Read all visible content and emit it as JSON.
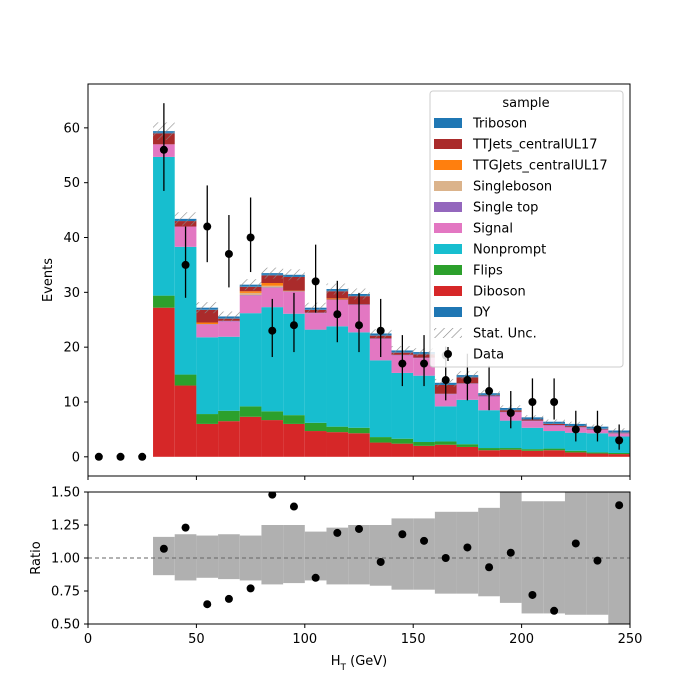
{
  "chart_data": [
    {
      "type": "stacked-histogram",
      "ylabel": "Events",
      "ylim": [
        -3.5,
        68
      ],
      "yticks": [
        0,
        10,
        20,
        30,
        40,
        50,
        60
      ],
      "xlim": [
        0,
        250
      ],
      "bin_edges": [
        0,
        10,
        20,
        30,
        40,
        50,
        60,
        70,
        80,
        90,
        100,
        110,
        120,
        130,
        140,
        150,
        160,
        170,
        180,
        190,
        200,
        210,
        220,
        230,
        240,
        250
      ],
      "legend": {
        "title": "sample",
        "placement": "upper right",
        "entries": [
          "Triboson",
          "TTJets_centralUL17",
          "TTGJets_centralUL17",
          "Singleboson",
          "Single top",
          "Signal",
          "Nonprompt",
          "Flips",
          "Diboson",
          "DY",
          "Stat. Unc.",
          "Data"
        ]
      },
      "series": [
        {
          "name": "Diboson",
          "color": "#d62728",
          "values": [
            0,
            0,
            0,
            27.2,
            13.0,
            6.0,
            6.5,
            7.3,
            6.7,
            6.0,
            4.7,
            4.5,
            4.3,
            2.6,
            2.4,
            2.0,
            2.2,
            1.8,
            1.2,
            1.3,
            1.1,
            1.2,
            0.8,
            0.6,
            0.5
          ]
        },
        {
          "name": "Flips",
          "color": "#2ca02c",
          "values": [
            0,
            0,
            0,
            2.2,
            2.0,
            1.8,
            1.9,
            1.9,
            1.6,
            1.6,
            1.5,
            1.0,
            1.0,
            1.0,
            0.9,
            0.7,
            0.6,
            0.5,
            0.4,
            0.3,
            0.3,
            0.3,
            0.3,
            0.2,
            0.2
          ]
        },
        {
          "name": "Nonprompt",
          "color": "#17becf",
          "values": [
            0,
            0,
            0,
            25.3,
            23.3,
            14.0,
            13.5,
            17.0,
            19.0,
            18.5,
            17.0,
            18.3,
            17.4,
            14.0,
            12.0,
            12.1,
            6.4,
            8.1,
            6.9,
            5.0,
            3.9,
            3.2,
            3.3,
            3.5,
            3.0
          ]
        },
        {
          "name": "Signal",
          "color": "#e377c2",
          "values": [
            0,
            0,
            0,
            2.3,
            3.7,
            2.3,
            2.8,
            3.2,
            3.5,
            4.0,
            3.0,
            4.8,
            5.0,
            3.9,
            3.2,
            3.2,
            2.2,
            2.9,
            2.5,
            1.5,
            1.2,
            1.0,
            0.9,
            0.6,
            0.5
          ]
        },
        {
          "name": "Single top",
          "color": "#9467bd",
          "values": [
            0,
            0,
            0,
            0,
            0,
            0.1,
            0.1,
            0.1,
            0.1,
            0.1,
            0.1,
            0.1,
            0.1,
            0.1,
            0.1,
            0.1,
            0.1,
            0.1,
            0.1,
            0.1,
            0.1,
            0.1,
            0.1,
            0.1,
            0.1
          ]
        },
        {
          "name": "Singleboson",
          "color": "#dbb38b",
          "values": [
            0,
            0,
            0,
            0,
            0,
            0,
            0,
            0.4,
            0.3,
            0,
            0,
            0,
            0,
            0,
            0,
            0,
            0,
            0,
            0,
            0,
            0,
            0,
            0,
            0,
            0
          ]
        },
        {
          "name": "TTGJets_centralUL17",
          "color": "#ff7f0e",
          "values": [
            0,
            0,
            0,
            0,
            0,
            0.3,
            0,
            0.3,
            0.5,
            0.1,
            0,
            0.2,
            0,
            0,
            0,
            0,
            0,
            0,
            0,
            0,
            0,
            0,
            0,
            0,
            0
          ]
        },
        {
          "name": "TTJets_centralUL17",
          "color": "#aa2b2b",
          "values": [
            0,
            0,
            0,
            2.0,
            1.0,
            2.3,
            0.4,
            0.8,
            1.4,
            2.5,
            0.5,
            1.3,
            1.5,
            0.5,
            0.4,
            0.6,
            1.6,
            1.1,
            0.1,
            0.3,
            0.2,
            0.2,
            0.2,
            0.1,
            0.1
          ]
        },
        {
          "name": "Triboson",
          "color": "#1f77b4",
          "values": [
            0,
            0,
            0,
            0.1,
            0.1,
            0.1,
            0.1,
            0.1,
            0.1,
            0.1,
            0.1,
            0.1,
            0.1,
            0.1,
            0.1,
            0.1,
            0.1,
            0.1,
            0.1,
            0.1,
            0.1,
            0.1,
            0.1,
            0.1,
            0.1
          ]
        },
        {
          "name": "DY",
          "color": "#1f77b4",
          "values": [
            0,
            0,
            0,
            0.3,
            0.3,
            0.3,
            0.3,
            0.3,
            0.3,
            0.3,
            0.3,
            0.3,
            0.3,
            0.3,
            0.3,
            0.3,
            0.3,
            0.3,
            0.3,
            0.3,
            0.3,
            0.3,
            0.3,
            0.3,
            0.3
          ]
        }
      ],
      "stat_unc": [
        0,
        0,
        0,
        1.6,
        1.2,
        1.0,
        0.9,
        1.0,
        1.0,
        1.0,
        0.9,
        1.0,
        1.0,
        0.8,
        0.8,
        0.7,
        0.7,
        0.7,
        0.6,
        0.5,
        0.4,
        0.4,
        0.4,
        0.4,
        0.4
      ],
      "data_points": {
        "name": "Data",
        "x": [
          5,
          15,
          25,
          35,
          45,
          55,
          65,
          75,
          85,
          95,
          105,
          115,
          125,
          135,
          145,
          155,
          165,
          175,
          185,
          195,
          205,
          215,
          225,
          235,
          245
        ],
        "y": [
          0,
          0,
          0,
          56,
          35,
          42,
          37,
          40,
          23,
          24,
          32,
          26,
          24,
          23,
          17,
          17,
          14,
          14,
          12,
          8,
          10,
          10,
          5,
          5,
          3
        ],
        "err_low": [
          0,
          0,
          0,
          7.5,
          6.0,
          6.5,
          6.1,
          6.3,
          4.8,
          4.9,
          5.7,
          5.1,
          4.9,
          4.8,
          4.1,
          4.1,
          3.7,
          3.7,
          3.5,
          2.8,
          3.2,
          3.2,
          2.2,
          2.2,
          1.7
        ],
        "err_high": [
          0,
          0,
          0,
          8.5,
          7.0,
          7.5,
          7.1,
          7.3,
          5.8,
          5.9,
          6.7,
          6.1,
          5.9,
          5.8,
          5.2,
          5.2,
          4.8,
          4.8,
          4.6,
          4.0,
          4.3,
          4.3,
          3.4,
          3.4,
          2.9
        ]
      },
      "extra_points": [
        {
          "x": 165,
          "y": 18.5,
          "err_low": 1.6,
          "err_high": 1.6
        }
      ]
    },
    {
      "type": "ratio",
      "xlabel": "H",
      "xlabel_sub": "T",
      "xlabel_unit": " (GeV)",
      "ylabel": "Ratio",
      "ylim": [
        0.5,
        1.5
      ],
      "yticks": [
        "0.50",
        "0.75",
        "1.00",
        "1.25",
        "1.50"
      ],
      "xticks": [
        "0",
        "50",
        "100",
        "150",
        "200",
        "250"
      ],
      "reference_line": 1.0,
      "band_color": "#b0b0b0",
      "band_low": [
        null,
        null,
        null,
        0.87,
        0.83,
        0.85,
        0.84,
        0.83,
        0.8,
        0.81,
        0.83,
        0.8,
        0.8,
        0.79,
        0.76,
        0.76,
        0.73,
        0.73,
        0.71,
        0.66,
        0.58,
        0.58,
        0.57,
        0.57,
        0.45
      ],
      "band_high": [
        null,
        null,
        null,
        1.16,
        1.18,
        1.17,
        1.18,
        1.17,
        1.25,
        1.25,
        1.2,
        1.23,
        1.25,
        1.25,
        1.3,
        1.3,
        1.35,
        1.35,
        1.38,
        1.5,
        1.43,
        1.43,
        1.5,
        1.5,
        1.6
      ],
      "points": {
        "x": [
          35,
          45,
          55,
          65,
          75,
          85,
          95,
          105,
          115,
          125,
          135,
          145,
          155,
          165,
          175,
          185,
          195,
          205,
          215,
          225,
          235,
          245
        ],
        "y": [
          1.07,
          1.23,
          0.65,
          0.69,
          0.77,
          1.48,
          1.39,
          0.85,
          1.19,
          1.22,
          0.97,
          1.18,
          1.13,
          1.0,
          1.08,
          0.93,
          1.04,
          0.72,
          0.6,
          1.11,
          0.98,
          1.4
        ]
      }
    }
  ]
}
